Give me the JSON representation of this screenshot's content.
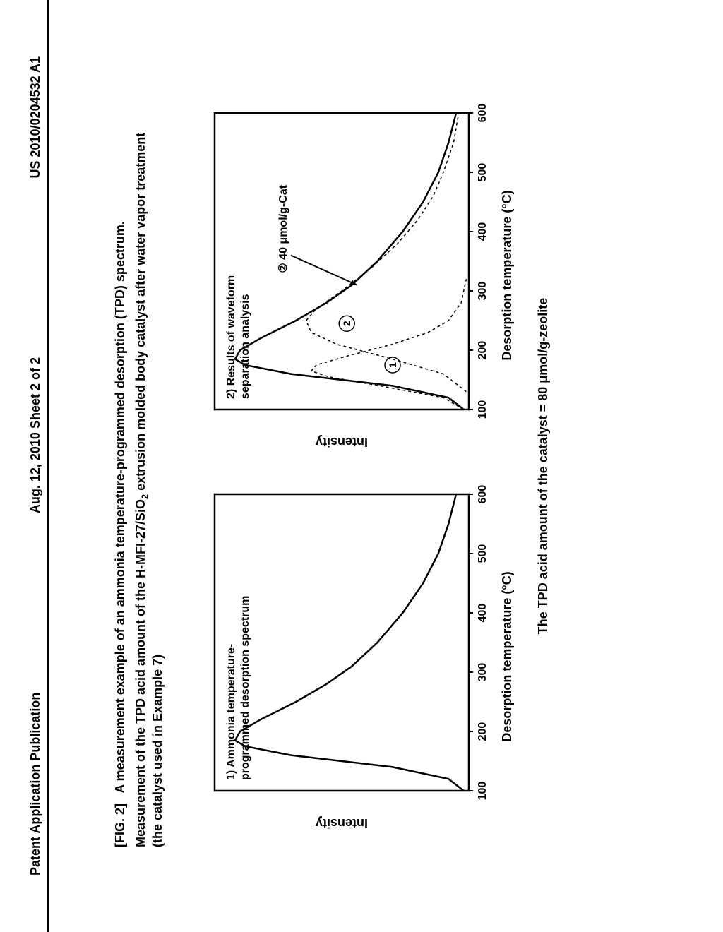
{
  "header": {
    "left": "Patent Application Publication",
    "center": "Aug. 12, 2010  Sheet 2 of 2",
    "right": "US 2010/0204532 A1"
  },
  "figure": {
    "label": "[FIG. 2]",
    "caption": "A measurement example of an ammonia temperature-programmed desorption (TPD) spectrum.",
    "subtitle_prefix": "Measurement of the TPD acid amount of the H-MFI-27/SiO",
    "subtitle_sub": "2",
    "subtitle_suffix": " extrusion molded body catalyst after water vapor treatment",
    "example_note": "(the catalyst used in Example 7)"
  },
  "chart1": {
    "type": "line",
    "title_line1": "1) Ammonia temperature-",
    "title_line2": "programmed desorption spectrum",
    "xlabel": "Desorption temperature (°C)",
    "ylabel": "Intensity",
    "xlim": [
      100,
      600
    ],
    "ylim": [
      0,
      100
    ],
    "xtick_step": 100,
    "xticks": [
      100,
      200,
      300,
      400,
      500,
      600
    ],
    "background_color": "#ffffff",
    "axis_color": "#000000",
    "axis_width": 2.5,
    "tick_fontsize": 16,
    "label_fontsize": 18,
    "series": {
      "color": "#000000",
      "width": 2.5,
      "dash": "none",
      "points": [
        [
          100,
          2
        ],
        [
          120,
          8
        ],
        [
          140,
          30
        ],
        [
          160,
          70
        ],
        [
          175,
          88
        ],
        [
          185,
          92
        ],
        [
          200,
          90
        ],
        [
          220,
          82
        ],
        [
          250,
          68
        ],
        [
          280,
          56
        ],
        [
          310,
          46
        ],
        [
          350,
          36
        ],
        [
          400,
          26
        ],
        [
          450,
          18
        ],
        [
          500,
          12
        ],
        [
          550,
          8
        ],
        [
          600,
          5
        ]
      ]
    }
  },
  "chart2": {
    "type": "line",
    "title_line1": "2) Results of waveform",
    "title_line2": "separation analysis",
    "xlabel": "Desorption temperature (°C)",
    "ylabel": "Intensity",
    "xlim": [
      100,
      600
    ],
    "ylim": [
      0,
      100
    ],
    "xtick_step": 100,
    "xticks": [
      100,
      200,
      300,
      400,
      500,
      600
    ],
    "background_color": "#ffffff",
    "axis_color": "#000000",
    "axis_width": 2.5,
    "tick_fontsize": 16,
    "label_fontsize": 18,
    "annotation_label": "② 40 μmol/g-Cat",
    "annotation_fontsize": 16,
    "peak_labels": {
      "p1": "1",
      "p2": "2"
    },
    "series_main": {
      "color": "#000000",
      "width": 2.5,
      "dash": "none",
      "points": [
        [
          100,
          2
        ],
        [
          120,
          8
        ],
        [
          140,
          30
        ],
        [
          160,
          70
        ],
        [
          175,
          88
        ],
        [
          185,
          92
        ],
        [
          200,
          90
        ],
        [
          220,
          82
        ],
        [
          250,
          68
        ],
        [
          280,
          56
        ],
        [
          310,
          46
        ],
        [
          350,
          36
        ],
        [
          400,
          26
        ],
        [
          450,
          18
        ],
        [
          500,
          12
        ],
        [
          550,
          8
        ],
        [
          600,
          5
        ]
      ]
    },
    "series_peak1": {
      "color": "#000000",
      "width": 1.5,
      "dash": "4,4",
      "points": [
        [
          100,
          2
        ],
        [
          120,
          10
        ],
        [
          140,
          35
        ],
        [
          155,
          55
        ],
        [
          165,
          62
        ],
        [
          175,
          60
        ],
        [
          190,
          48
        ],
        [
          210,
          30
        ],
        [
          230,
          16
        ],
        [
          250,
          8
        ],
        [
          280,
          3
        ],
        [
          320,
          1
        ]
      ]
    },
    "series_peak2": {
      "color": "#000000",
      "width": 1.5,
      "dash": "4,4",
      "points": [
        [
          130,
          1
        ],
        [
          160,
          10
        ],
        [
          185,
          30
        ],
        [
          210,
          52
        ],
        [
          230,
          62
        ],
        [
          250,
          64
        ],
        [
          270,
          60
        ],
        [
          300,
          50
        ],
        [
          340,
          38
        ],
        [
          380,
          28
        ],
        [
          420,
          20
        ],
        [
          460,
          14
        ],
        [
          500,
          10
        ],
        [
          550,
          6
        ],
        [
          600,
          4
        ]
      ]
    },
    "arrow": {
      "from": [
        360,
        70
      ],
      "to": [
        310,
        44
      ]
    }
  },
  "footer": "The TPD acid amount of the catalyst = 80 μmol/g-zeolite"
}
